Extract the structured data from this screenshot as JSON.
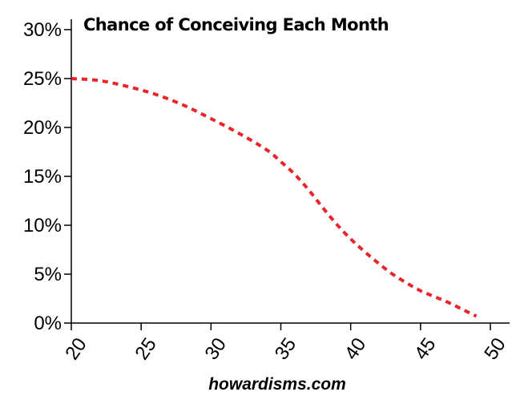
{
  "chart_data": {
    "type": "line",
    "title": "Chance of Conceiving Each Month",
    "xlabel": "",
    "ylabel": "",
    "xlim": [
      20,
      50
    ],
    "ylim": [
      0,
      30
    ],
    "x_ticks": [
      "20",
      "25",
      "30",
      "35",
      "40",
      "45",
      "50"
    ],
    "x_tick_values": [
      20,
      25,
      30,
      35,
      40,
      45,
      50
    ],
    "y_ticks": [
      "0%",
      "5%",
      "10%",
      "15%",
      "20%",
      "25%",
      "30%"
    ],
    "y_tick_values": [
      0,
      5,
      10,
      15,
      20,
      25,
      30
    ],
    "grid": false,
    "series": [
      {
        "color": "#e8252b",
        "style": "dashed",
        "x": [
          20,
          22,
          24,
          26,
          28,
          30,
          32,
          34,
          35,
          36,
          37,
          38,
          39,
          40,
          41,
          42,
          43,
          44,
          45,
          46,
          47,
          48,
          49
        ],
        "y": [
          25.0,
          24.8,
          24.2,
          23.4,
          22.3,
          20.9,
          19.4,
          17.7,
          16.5,
          15.2,
          13.6,
          11.8,
          10.1,
          8.6,
          7.3,
          6.1,
          5.0,
          4.1,
          3.3,
          2.7,
          2.1,
          1.4,
          0.7
        ]
      }
    ]
  },
  "footer": {
    "source": "howardisms.com"
  }
}
